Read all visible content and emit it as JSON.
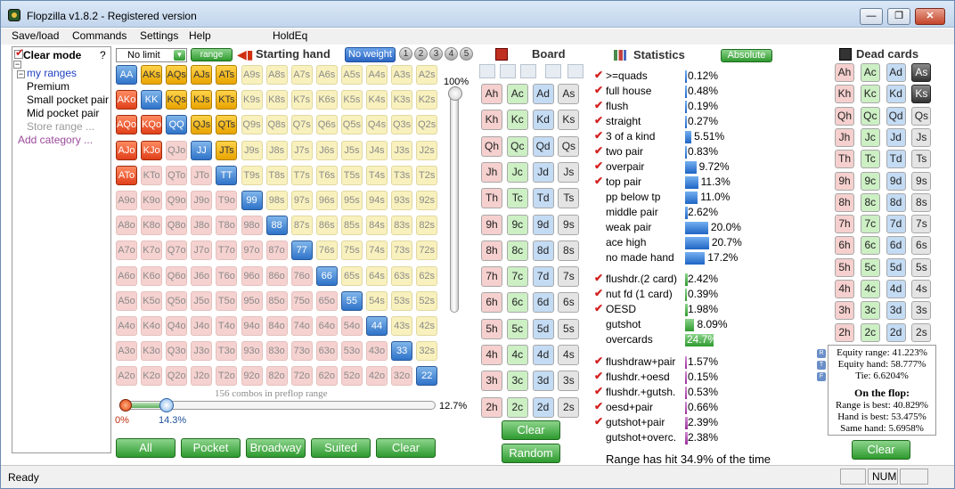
{
  "window": {
    "title": "Flopzilla v1.8.2 - Registered version",
    "min_label": "—",
    "max_label": "❐",
    "close_label": "✕"
  },
  "menu": [
    "Save/load",
    "Commands",
    "Settings",
    "Help",
    "HoldEq"
  ],
  "tree": {
    "clear_mode": "Clear mode",
    "help": "?",
    "items": [
      {
        "label": "my ranges",
        "color": "#2040c0"
      },
      {
        "label": "Premium",
        "color": "#000000"
      },
      {
        "label": "Small pocket pair",
        "color": "#000000"
      },
      {
        "label": "Mid pocket pair",
        "color": "#000000"
      },
      {
        "label": "Store range ...",
        "color": "#9a9a9a"
      },
      {
        "label": "Add category ...",
        "color": "#9a4a9a"
      }
    ]
  },
  "toolbar": {
    "limit_select": "No limit",
    "range_button": "range",
    "starting_hand": "Starting hand",
    "no_weight": "No weight",
    "weights": [
      "1",
      "2",
      "3",
      "4",
      "5"
    ]
  },
  "hand_grid": {
    "rows": [
      [
        "AA",
        "AKs",
        "AQs",
        "AJs",
        "ATs",
        "A9s",
        "A8s",
        "A7s",
        "A6s",
        "A5s",
        "A4s",
        "A3s",
        "A2s"
      ],
      [
        "AKo",
        "KK",
        "KQs",
        "KJs",
        "KTs",
        "K9s",
        "K8s",
        "K7s",
        "K6s",
        "K5s",
        "K4s",
        "K3s",
        "K2s"
      ],
      [
        "AQo",
        "KQo",
        "QQ",
        "QJs",
        "QTs",
        "Q9s",
        "Q8s",
        "Q7s",
        "Q6s",
        "Q5s",
        "Q4s",
        "Q3s",
        "Q2s"
      ],
      [
        "AJo",
        "KJo",
        "QJo",
        "JJ",
        "JTs",
        "J9s",
        "J8s",
        "J7s",
        "J6s",
        "J5s",
        "J4s",
        "J3s",
        "J2s"
      ],
      [
        "ATo",
        "KTo",
        "QTo",
        "JTo",
        "TT",
        "T9s",
        "T8s",
        "T7s",
        "T6s",
        "T5s",
        "T4s",
        "T3s",
        "T2s"
      ],
      [
        "A9o",
        "K9o",
        "Q9o",
        "J9o",
        "T9o",
        "99",
        "98s",
        "97s",
        "96s",
        "95s",
        "94s",
        "93s",
        "92s"
      ],
      [
        "A8o",
        "K8o",
        "Q8o",
        "J8o",
        "T8o",
        "98o",
        "88",
        "87s",
        "86s",
        "85s",
        "84s",
        "83s",
        "82s"
      ],
      [
        "A7o",
        "K7o",
        "Q7o",
        "J7o",
        "T7o",
        "97o",
        "87o",
        "77",
        "76s",
        "75s",
        "74s",
        "73s",
        "72s"
      ],
      [
        "A6o",
        "K6o",
        "Q6o",
        "J6o",
        "T6o",
        "96o",
        "86o",
        "76o",
        "66",
        "65s",
        "64s",
        "63s",
        "62s"
      ],
      [
        "A5o",
        "K5o",
        "Q5o",
        "J5o",
        "T5o",
        "95o",
        "85o",
        "75o",
        "65o",
        "55",
        "54s",
        "53s",
        "52s"
      ],
      [
        "A4o",
        "K4o",
        "Q4o",
        "J4o",
        "T4o",
        "94o",
        "84o",
        "74o",
        "64o",
        "54o",
        "44",
        "43s",
        "42s"
      ],
      [
        "A3o",
        "K3o",
        "Q3o",
        "J3o",
        "T3o",
        "93o",
        "83o",
        "73o",
        "63o",
        "53o",
        "43o",
        "33",
        "32s"
      ],
      [
        "A2o",
        "K2o",
        "Q2o",
        "J2o",
        "T2o",
        "92o",
        "82o",
        "72o",
        "62o",
        "52o",
        "42o",
        "32o",
        "22"
      ]
    ],
    "selected": [
      "AA",
      "KK",
      "QQ",
      "JJ",
      "TT",
      "99",
      "88",
      "77",
      "66",
      "55",
      "44",
      "33",
      "22",
      "AKs",
      "AQs",
      "AJs",
      "ATs",
      "KQs",
      "KJs",
      "KTs",
      "QJs",
      "QTs",
      "JTs",
      "AKo",
      "AQo",
      "AJo",
      "ATo",
      "KQo",
      "KJo"
    ],
    "combos_text": "156 combos in preflop range",
    "vertical_pct": "100%",
    "slider_min": "0%",
    "slider_val": "14.3%",
    "slider_max": "12.7%",
    "range_fraction": 0.143
  },
  "bottom_buttons": [
    "All",
    "Pocket",
    "Broadway",
    "Suited",
    "Clear"
  ],
  "board": {
    "title": "Board",
    "cards": [
      [
        "Ah",
        "Ac",
        "Ad",
        "As"
      ],
      [
        "Kh",
        "Kc",
        "Kd",
        "Ks"
      ],
      [
        "Qh",
        "Qc",
        "Qd",
        "Qs"
      ],
      [
        "Jh",
        "Jc",
        "Jd",
        "Js"
      ],
      [
        "Th",
        "Tc",
        "Td",
        "Ts"
      ],
      [
        "9h",
        "9c",
        "9d",
        "9s"
      ],
      [
        "8h",
        "8c",
        "8d",
        "8s"
      ],
      [
        "7h",
        "7c",
        "7d",
        "7s"
      ],
      [
        "6h",
        "6c",
        "6d",
        "6s"
      ],
      [
        "5h",
        "5c",
        "5d",
        "5s"
      ],
      [
        "4h",
        "4c",
        "4d",
        "4s"
      ],
      [
        "3h",
        "3c",
        "3d",
        "3s"
      ],
      [
        "2h",
        "2c",
        "2d",
        "2s"
      ]
    ],
    "clear": "Clear",
    "random": "Random"
  },
  "statistics": {
    "title": "Statistics",
    "absolute": "Absolute",
    "groups": [
      [
        {
          "label": ">=quads",
          "value": "0.12%",
          "pct": 0.12,
          "checked": true
        },
        {
          "label": "full house",
          "value": "0.48%",
          "pct": 0.48,
          "checked": true
        },
        {
          "label": "flush",
          "value": "0.19%",
          "pct": 0.19,
          "checked": true
        },
        {
          "label": "straight",
          "value": "0.27%",
          "pct": 0.27,
          "checked": true
        },
        {
          "label": "3 of a kind",
          "value": "5.51%",
          "pct": 5.51,
          "checked": true
        },
        {
          "label": "two pair",
          "value": "0.83%",
          "pct": 0.83,
          "checked": true
        },
        {
          "label": "overpair",
          "value": "9.72%",
          "pct": 9.72,
          "checked": true
        },
        {
          "label": "top pair",
          "value": "11.3%",
          "pct": 11.3,
          "checked": true
        },
        {
          "label": "pp below tp",
          "value": "11.0%",
          "pct": 11.0,
          "checked": false
        },
        {
          "label": "middle pair",
          "value": "2.62%",
          "pct": 2.62,
          "checked": false
        },
        {
          "label": "weak pair",
          "value": "20.0%",
          "pct": 20.0,
          "checked": false
        },
        {
          "label": "ace high",
          "value": "20.7%",
          "pct": 20.7,
          "checked": false
        },
        {
          "label": "no made hand",
          "value": "17.2%",
          "pct": 17.2,
          "checked": false
        }
      ],
      [
        {
          "label": "flushdr.(2 card)",
          "value": "2.42%",
          "pct": 2.42,
          "checked": true
        },
        {
          "label": "nut fd (1 card)",
          "value": "0.39%",
          "pct": 0.39,
          "checked": true
        },
        {
          "label": "OESD",
          "value": "1.98%",
          "pct": 1.98,
          "checked": true
        },
        {
          "label": "gutshot",
          "value": "8.09%",
          "pct": 8.09,
          "checked": false
        },
        {
          "label": "overcards",
          "value": "24.7%",
          "pct": 24.7,
          "checked": false
        }
      ],
      [
        {
          "label": "flushdraw+pair",
          "value": "1.57%",
          "pct": 1.57,
          "checked": true
        },
        {
          "label": "flushdr.+oesd",
          "value": "0.15%",
          "pct": 0.15,
          "checked": true
        },
        {
          "label": "flushdr.+gutsh.",
          "value": "0.53%",
          "pct": 0.53,
          "checked": true
        },
        {
          "label": "oesd+pair",
          "value": "0.66%",
          "pct": 0.66,
          "checked": true
        },
        {
          "label": "gutshot+pair",
          "value": "2.39%",
          "pct": 2.39,
          "checked": true
        },
        {
          "label": "gutshot+overc.",
          "value": "2.38%",
          "pct": 2.38,
          "checked": false
        }
      ]
    ],
    "range_hit": "Range has hit 34.9% of the time"
  },
  "dead_cards": {
    "title": "Dead cards",
    "cards": [
      [
        "Ah",
        "Ac",
        "Ad",
        "As"
      ],
      [
        "Kh",
        "Kc",
        "Kd",
        "Ks"
      ],
      [
        "Qh",
        "Qc",
        "Qd",
        "Qs"
      ],
      [
        "Jh",
        "Jc",
        "Jd",
        "Js"
      ],
      [
        "Th",
        "Tc",
        "Td",
        "Ts"
      ],
      [
        "9h",
        "9c",
        "9d",
        "9s"
      ],
      [
        "8h",
        "8c",
        "8d",
        "8s"
      ],
      [
        "7h",
        "7c",
        "7d",
        "7s"
      ],
      [
        "6h",
        "6c",
        "6d",
        "6s"
      ],
      [
        "5h",
        "5c",
        "5d",
        "5s"
      ],
      [
        "4h",
        "4c",
        "4d",
        "4s"
      ],
      [
        "3h",
        "3c",
        "3d",
        "3s"
      ],
      [
        "2h",
        "2c",
        "2d",
        "2s"
      ]
    ],
    "dead": [
      "As",
      "Ks"
    ],
    "clear": "Clear"
  },
  "equity": {
    "side": [
      "R",
      "T",
      "F"
    ],
    "lines": [
      "Equity range: 41.223%",
      "Equity hand: 58.777%",
      "Tie: 6.6204%"
    ],
    "on_flop": "On the flop:",
    "flop_lines": [
      "Range is best: 40.829%",
      "Hand is best: 53.475%",
      "Same hand: 5.6958%"
    ]
  },
  "statusbar": {
    "text": "Ready",
    "num": "NUM"
  },
  "colors": {
    "accent_green": "#2e9a2e",
    "accent_blue": "#2a66c4",
    "check_red": "#d42020"
  }
}
